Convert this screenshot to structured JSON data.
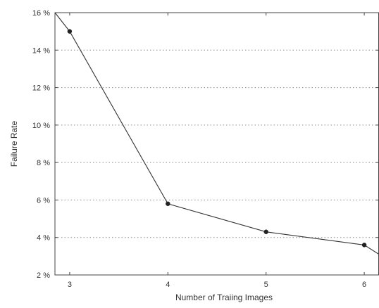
{
  "chart_data": {
    "type": "line",
    "title": "",
    "xlabel": "Number of Traiing Images",
    "ylabel": "Failure Rate",
    "xlim": [
      2.85,
      6.15
    ],
    "ylim": [
      2,
      16
    ],
    "x_ticks": [
      {
        "value": 3,
        "label": "3"
      },
      {
        "value": 4,
        "label": "4"
      },
      {
        "value": 5,
        "label": "5"
      },
      {
        "value": 6,
        "label": "6"
      }
    ],
    "y_ticks": [
      {
        "value": 2,
        "label": "2 %"
      },
      {
        "value": 4,
        "label": "4 %"
      },
      {
        "value": 6,
        "label": "6 %"
      },
      {
        "value": 8,
        "label": "8 %"
      },
      {
        "value": 10,
        "label": "10 %"
      },
      {
        "value": 12,
        "label": "12 %"
      },
      {
        "value": 14,
        "label": "14 %"
      },
      {
        "value": 16,
        "label": "16 %"
      }
    ],
    "grid": {
      "horizontal": true,
      "vertical": false,
      "style": "dotted"
    },
    "series": [
      {
        "markers": [
          {
            "x": 3,
            "y": 15.0
          },
          {
            "x": 4,
            "y": 5.8
          },
          {
            "x": 5,
            "y": 4.3
          },
          {
            "x": 6,
            "y": 3.6
          }
        ],
        "curve": [
          {
            "x": 2.85,
            "y": 16.0
          },
          {
            "x": 3,
            "y": 15.0
          },
          {
            "x": 4,
            "y": 5.8
          },
          {
            "x": 5,
            "y": 4.3
          },
          {
            "x": 6,
            "y": 3.6
          },
          {
            "x": 6.15,
            "y": 3.1
          }
        ],
        "color": "#333333"
      }
    ]
  }
}
